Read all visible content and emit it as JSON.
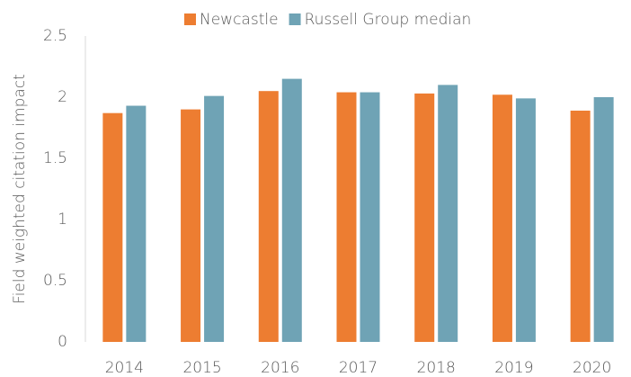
{
  "chart_data": {
    "type": "bar",
    "y_label": "Field weighted citation impact",
    "categories": [
      "2014",
      "2015",
      "2016",
      "2017",
      "2018",
      "2019",
      "2020"
    ],
    "series": [
      {
        "name": "Newcastle",
        "color": "#ed7d31",
        "values": [
          1.87,
          1.9,
          2.05,
          2.04,
          2.03,
          2.02,
          1.89
        ]
      },
      {
        "name": "Russell Group median",
        "color": "#6fa3b5",
        "values": [
          1.93,
          2.01,
          2.15,
          2.04,
          2.1,
          1.99,
          2.0
        ]
      }
    ],
    "ylim": [
      0,
      2.5
    ],
    "yticks": [
      0,
      0.5,
      1,
      1.5,
      2,
      2.5
    ],
    "grid": false,
    "legend": "top"
  }
}
